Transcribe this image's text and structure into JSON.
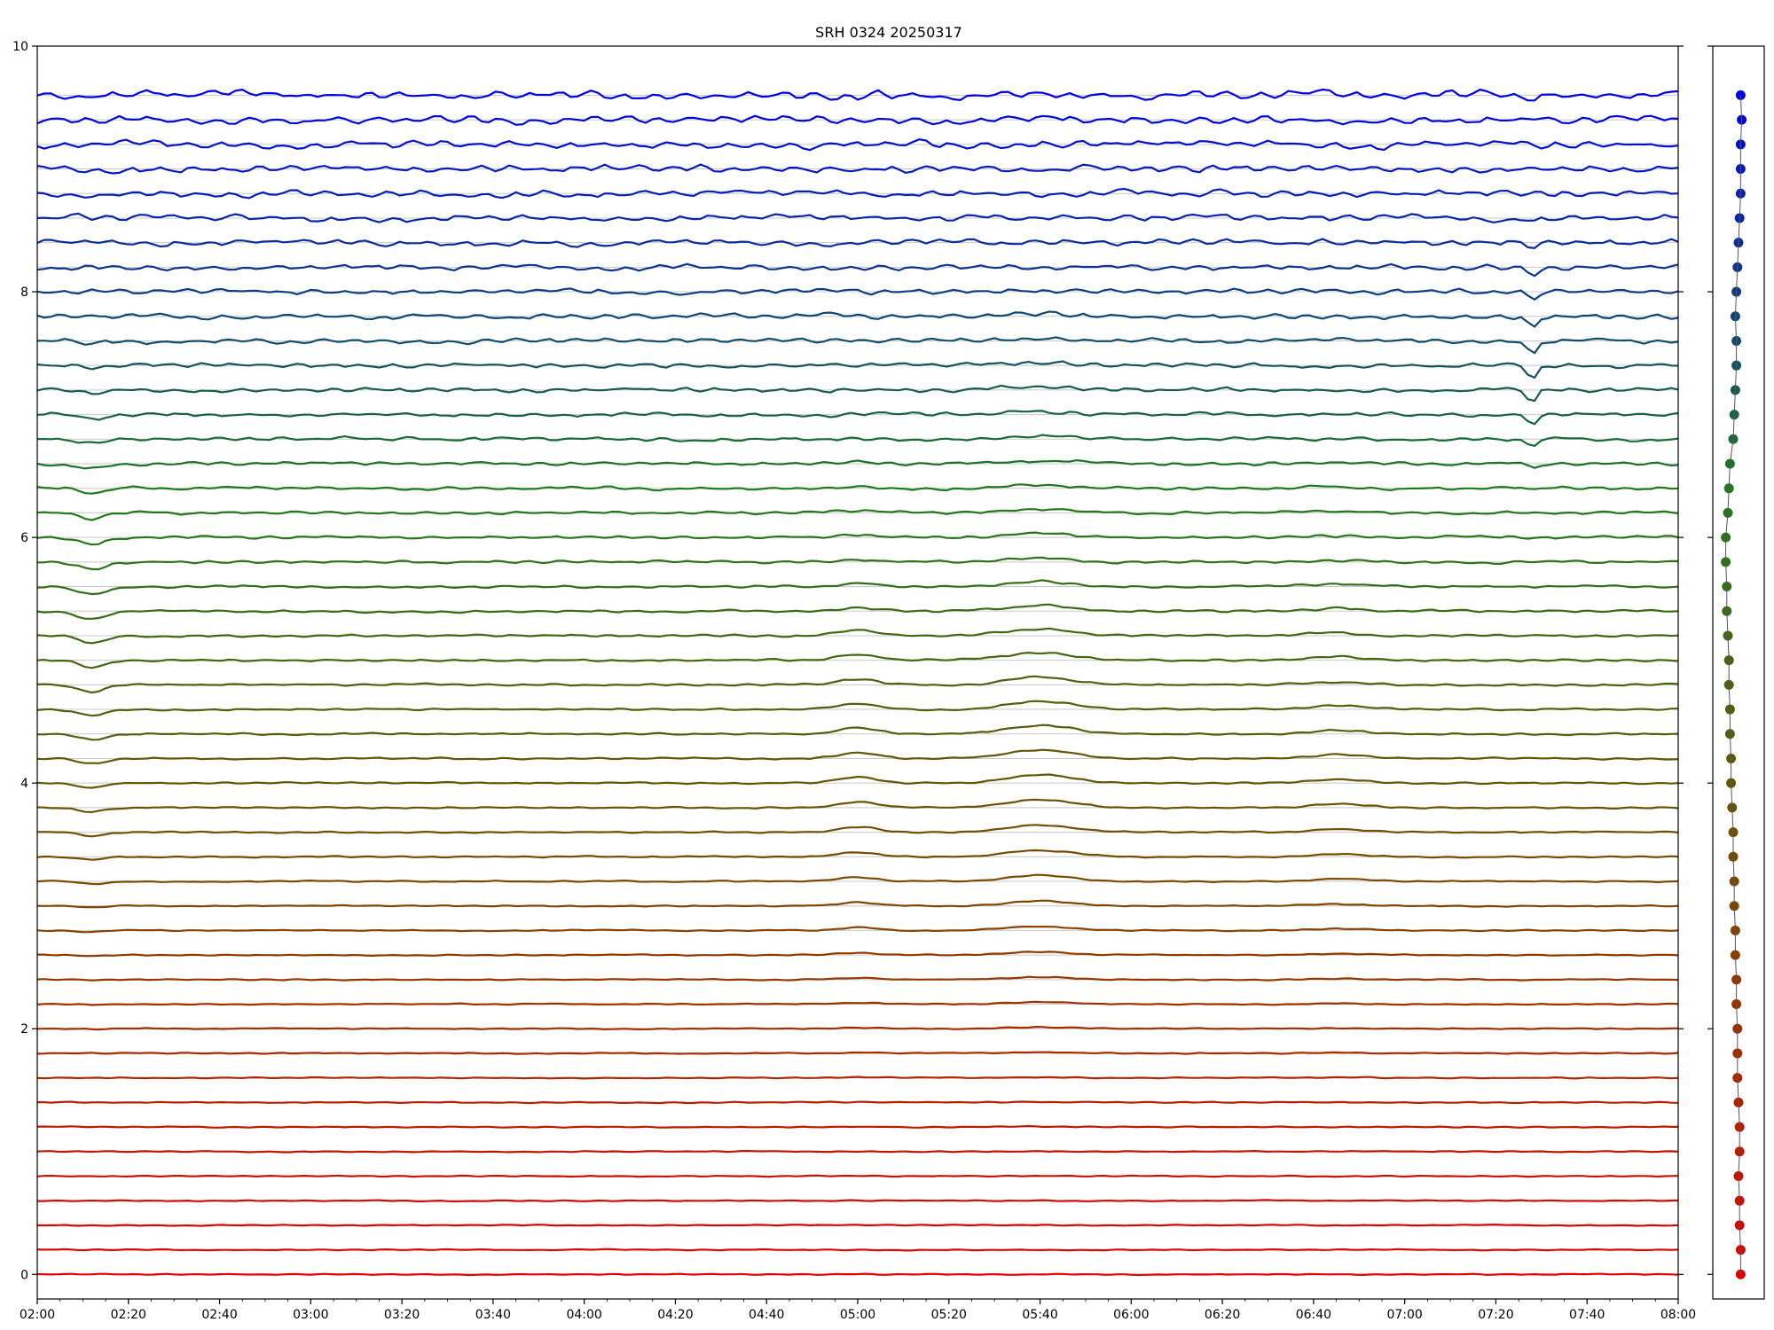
{
  "chart_data": {
    "type": "line",
    "title": "SRH 0324 20250317",
    "xlabel": "",
    "ylabel": "",
    "x_ticks": [
      "02:00",
      "02:20",
      "02:40",
      "03:00",
      "03:20",
      "03:40",
      "04:00",
      "04:20",
      "04:40",
      "05:00",
      "05:20",
      "05:40",
      "06:00",
      "06:20",
      "06:40",
      "07:00",
      "07:20",
      "07:40",
      "08:00"
    ],
    "xlim": [
      "02:00",
      "08:00"
    ],
    "y_ticks": [
      0,
      2,
      4,
      6,
      8,
      10
    ],
    "ylim": [
      -0.2,
      10
    ],
    "grid": "horizontal lines at each series baseline",
    "series_count": 49,
    "series_spacing": 0.2,
    "color_gradient": [
      "#e00000",
      "#7a4a00",
      "#1f7a1f",
      "#0000e0"
    ],
    "features": {
      "drop_near": "02:12",
      "bump_a": "05:00",
      "bump_b": "05:40",
      "bump_c": "06:45",
      "dip_near": "07:28"
    },
    "side_panel": {
      "type": "scatter",
      "description_values_x": [
        0.02,
        0.02,
        0.01,
        0.01,
        0.0,
        0.01,
        0.01,
        0.0,
        -0.01,
        -0.01,
        -0.01,
        -0.02,
        -0.02,
        -0.03,
        -0.03,
        -0.04,
        -0.04,
        -0.05,
        -0.05,
        -0.06,
        -0.07,
        -0.07,
        -0.08,
        -0.08,
        -0.09,
        -0.09,
        -0.1,
        -0.11,
        -0.11,
        -0.12,
        -0.12,
        -0.1,
        -0.09,
        -0.08,
        -0.05,
        -0.04,
        -0.03,
        -0.02,
        -0.02,
        -0.03,
        -0.02,
        -0.01,
        0.0,
        0.01,
        0.02,
        0.02,
        0.02,
        0.03,
        0.02
      ]
    }
  }
}
